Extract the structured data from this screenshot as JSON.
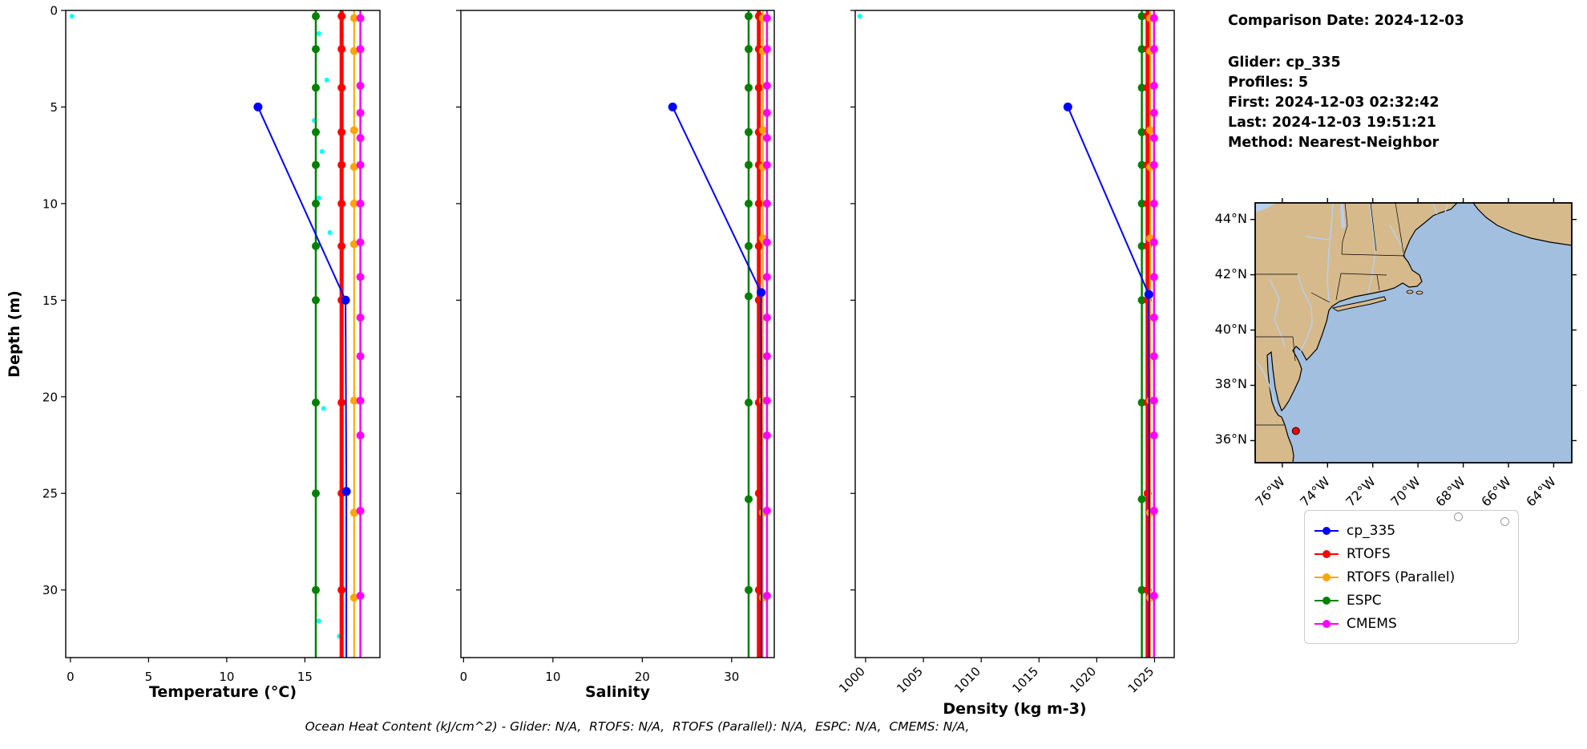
{
  "info_panel": {
    "comparison_date": "Comparison Date: 2024-12-03",
    "glider": "Glider: cp_335",
    "profiles": "Profiles: 5",
    "first": "First: 2024-12-03 02:32:42",
    "last": "Last: 2024-12-03 19:51:21",
    "method": "Method: Nearest-Neighbor"
  },
  "footer": "Ocean Heat Content (kJ/cm^2) - Glider: N/A,  RTOFS: N/A,  RTOFS (Parallel): N/A,  ESPC: N/A,  CMEMS: N/A,",
  "legend": {
    "items": [
      {
        "label": "cp_335",
        "color": "#0000ff"
      },
      {
        "label": "RTOFS",
        "color": "#ff0000"
      },
      {
        "label": "RTOFS (Parallel)",
        "color": "#ffa500"
      },
      {
        "label": "ESPC",
        "color": "#008000"
      },
      {
        "label": "CMEMS",
        "color": "#ff00ff"
      }
    ]
  },
  "chart_data": {
    "type": "line",
    "ylabel": "Depth (m)",
    "ylim": [
      0,
      33.5
    ],
    "y_ticks": [
      0,
      5,
      10,
      15,
      20,
      25,
      30
    ],
    "charts": [
      {
        "xlabel": "Temperature (°C)",
        "xlim": [
          -0.3,
          19.8
        ],
        "xticks": [
          0,
          5,
          10,
          15
        ],
        "rotate_xticks": false,
        "series": [
          {
            "name": "glider-raw",
            "color": "#00ffff",
            "line": false,
            "marker_size": 3,
            "points": [
              [
                0.1,
                0.3
              ],
              [
                15.9,
                1.2
              ],
              [
                16.4,
                3.6
              ],
              [
                15.6,
                5.7
              ],
              [
                16.1,
                7.3
              ],
              [
                15.9,
                9.7
              ],
              [
                16.6,
                11.5
              ],
              [
                15.7,
                12.3
              ],
              [
                16.2,
                20.6
              ],
              [
                15.9,
                31.6
              ],
              [
                17.2,
                32.4
              ]
            ]
          },
          {
            "name": "ESPC",
            "color": "#008000",
            "lw": 2.5,
            "x": 15.7,
            "marker_depths": [
              0.3,
              2,
              4,
              6.3,
              8,
              10,
              12.2,
              15,
              20.3,
              25,
              30
            ]
          },
          {
            "name": "RTOFS",
            "color": "#ff0000",
            "lw": 5,
            "x": 17.35,
            "marker_depths": [
              0.3,
              2,
              4,
              6.3,
              8,
              10,
              12.2,
              15,
              20.3,
              25,
              30
            ]
          },
          {
            "name": "RTOFS (Parallel)",
            "color": "#ffa500",
            "lw": 2,
            "x": 18.15,
            "marker_depths": [
              0.4,
              2.1,
              6.2,
              8.1,
              10,
              12.1,
              20.2,
              26,
              30.4
            ]
          },
          {
            "name": "CMEMS",
            "color": "#ff00ff",
            "lw": 2.5,
            "x": 18.55,
            "marker_depths": [
              0.4,
              2,
              3.9,
              5.3,
              6.6,
              8,
              10,
              12,
              13.8,
              15.9,
              17.9,
              20.2,
              22,
              25.9,
              30.3
            ]
          },
          {
            "name": "cp_335",
            "color": "#0000ff",
            "lw": 2,
            "marker_size": 5.5,
            "points": [
              [
                12,
                5
              ],
              [
                17.6,
                15
              ],
              [
                17.65,
                24.9
              ],
              [
                17.65,
                33.5
              ]
            ],
            "markers": [
              [
                12,
                5
              ],
              [
                17.6,
                15
              ],
              [
                17.65,
                24.9
              ]
            ]
          }
        ]
      },
      {
        "xlabel": "Salinity",
        "xlim": [
          -0.3,
          34.77
        ],
        "xticks": [
          0,
          10,
          20,
          30
        ],
        "rotate_xticks": false,
        "series": [
          {
            "name": "ESPC",
            "color": "#008000",
            "lw": 2.5,
            "x": 31.9,
            "marker_depths": [
              0.3,
              2,
              4,
              6.3,
              8,
              10,
              12.2,
              14.8,
              20.3,
              25.3,
              30
            ]
          },
          {
            "name": "RTOFS",
            "color": "#ff0000",
            "lw": 5,
            "x": 33.05,
            "marker_depths": [
              0.3,
              2,
              4,
              6.3,
              8,
              10,
              12.2,
              15,
              20.3,
              25,
              30
            ]
          },
          {
            "name": "RTOFS (Parallel)",
            "color": "#ffa500",
            "lw": 2,
            "x": 33.5,
            "marker_depths": [
              0.4,
              2.1,
              6.2,
              8.1,
              11.8,
              20.2,
              26,
              30.4
            ]
          },
          {
            "name": "CMEMS",
            "color": "#ff00ff",
            "lw": 2.5,
            "x": 33.95,
            "marker_depths": [
              0.4,
              2,
              3.9,
              5.3,
              6.6,
              8,
              10,
              12,
              13.8,
              15.9,
              17.9,
              20.2,
              22,
              25.9,
              30.3
            ]
          },
          {
            "name": "cp_335",
            "color": "#0000ff",
            "lw": 2,
            "marker_size": 5.5,
            "points": [
              [
                23.4,
                5
              ],
              [
                33.3,
                14.6
              ],
              [
                33.35,
                24.9
              ],
              [
                33.35,
                33.5
              ]
            ],
            "markers": [
              [
                23.4,
                5
              ],
              [
                33.3,
                14.6
              ]
            ]
          }
        ]
      },
      {
        "xlabel": "Density (kg m-3)",
        "xlim": [
          999.1,
          1026.7
        ],
        "xticks": [
          1000,
          1005,
          1010,
          1015,
          1020,
          1025
        ],
        "rotate_xticks": true,
        "series": [
          {
            "name": "glider-raw",
            "color": "#00ffff",
            "line": false,
            "marker_size": 3,
            "points": [
              [
                999.5,
                0.3
              ]
            ]
          },
          {
            "name": "ESPC",
            "color": "#008000",
            "lw": 2.5,
            "x": 1023.9,
            "marker_depths": [
              0.3,
              2,
              4,
              6.3,
              8,
              10,
              12.2,
              15,
              20.3,
              25.3,
              30
            ]
          },
          {
            "name": "RTOFS",
            "color": "#ff0000",
            "lw": 5,
            "x": 1024.4,
            "marker_depths": [
              0.3,
              2,
              4,
              6.3,
              8,
              10,
              12.2,
              15,
              20.3,
              25,
              30
            ]
          },
          {
            "name": "RTOFS (Parallel)",
            "color": "#ffa500",
            "lw": 2,
            "x": 1024.62,
            "marker_depths": [
              0.4,
              2.1,
              6.2,
              8.1,
              11.8,
              20.2,
              26,
              30.4
            ]
          },
          {
            "name": "CMEMS",
            "color": "#ff00ff",
            "lw": 2.5,
            "x": 1024.95,
            "marker_depths": [
              0.4,
              2,
              3.9,
              5.3,
              6.6,
              8,
              10,
              12,
              13.8,
              15.9,
              17.9,
              20.2,
              22,
              25.9,
              30.3
            ]
          },
          {
            "name": "cp_335",
            "color": "#0000ff",
            "lw": 2,
            "marker_size": 5.5,
            "points": [
              [
                1017.5,
                5
              ],
              [
                1024.5,
                14.7
              ],
              [
                1024.55,
                24.9
              ],
              [
                1024.55,
                33.5
              ]
            ],
            "markers": [
              [
                1017.5,
                5
              ],
              [
                1024.5,
                14.7
              ]
            ]
          }
        ]
      }
    ],
    "map": {
      "extent": {
        "lon": [
          -77.2,
          -63.2
        ],
        "lat": [
          35.2,
          44.6
        ]
      },
      "lat_ticks": [
        {
          "label": "44°N",
          "value": 44
        },
        {
          "label": "42°N",
          "value": 42
        },
        {
          "label": "40°N",
          "value": 40
        },
        {
          "label": "38°N",
          "value": 38
        },
        {
          "label": "36°N",
          "value": 36
        }
      ],
      "lon_ticks": [
        {
          "label": "76°W",
          "value": -76
        },
        {
          "label": "74°W",
          "value": -74
        },
        {
          "label": "72°W",
          "value": -72
        },
        {
          "label": "70°W",
          "value": -70
        },
        {
          "label": "68°W",
          "value": -68
        },
        {
          "label": "66°W",
          "value": -66
        },
        {
          "label": "64°W",
          "value": -64
        }
      ],
      "marker": {
        "lon": -75.4,
        "lat": 36.35,
        "color": "#ff0000"
      },
      "land_color": "#d6ba8c",
      "ocean_color": "#a2bfe0",
      "water_detail_color": "#b7d0f0"
    }
  }
}
